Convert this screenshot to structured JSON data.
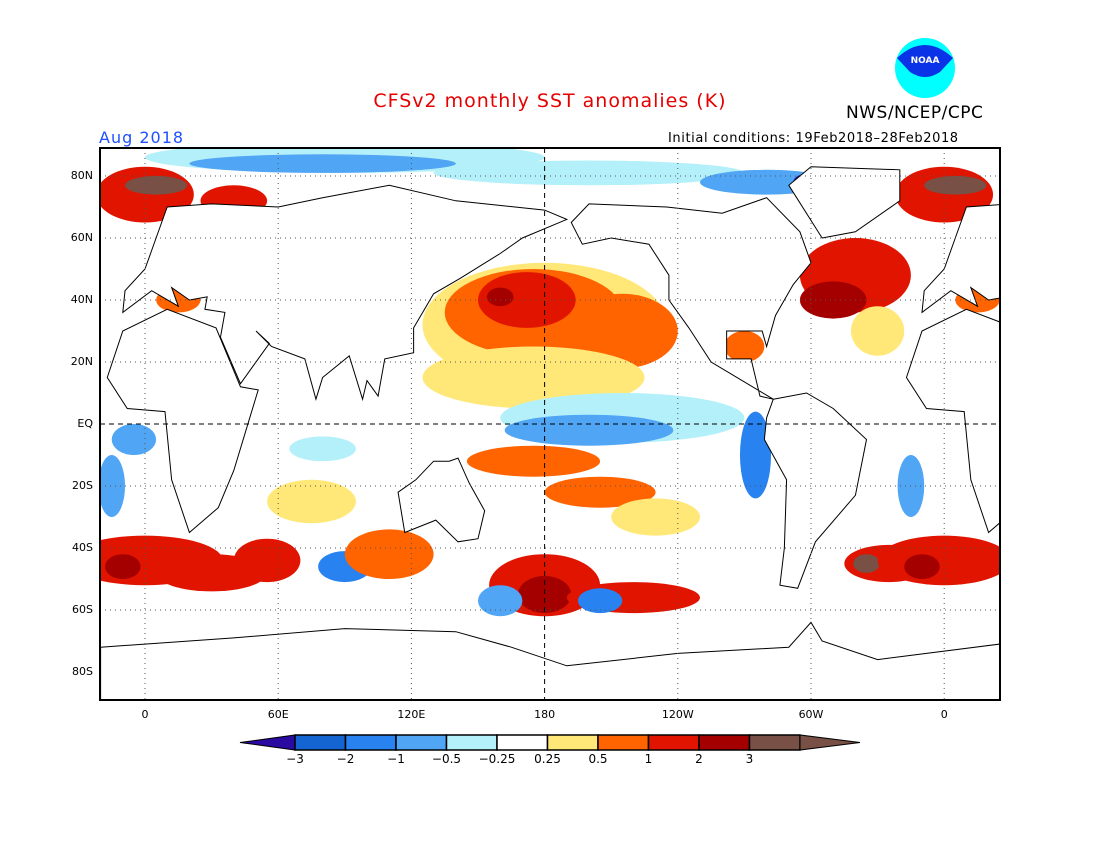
{
  "header": {
    "title": "CFSv2 monthly SST anomalies (K)",
    "target_month": "Aug 2018",
    "organization": "NWS/NCEP/CPC",
    "logo_text": "NOAA",
    "initial_conditions": "Initial conditions: 19Feb2018–28Feb2018"
  },
  "map": {
    "lat_labels": [
      "80N",
      "60N",
      "40N",
      "20N",
      "EQ",
      "20S",
      "40S",
      "60S",
      "80S"
    ],
    "lon_labels": [
      "0",
      "60E",
      "120E",
      "180",
      "120W",
      "60W",
      "0"
    ]
  },
  "colorbar": {
    "unit": "K",
    "labels": [
      "−3",
      "−2",
      "−1",
      "−0.5",
      "−0.25",
      "0.25",
      "0.5",
      "1",
      "2",
      "3"
    ],
    "colors": [
      "#2a0aa0",
      "#1464d2",
      "#2882f0",
      "#50a5f5",
      "#b4f0fa",
      "#ffffff",
      "#ffe878",
      "#ff6400",
      "#e11400",
      "#a50000",
      "#785046"
    ]
  }
}
